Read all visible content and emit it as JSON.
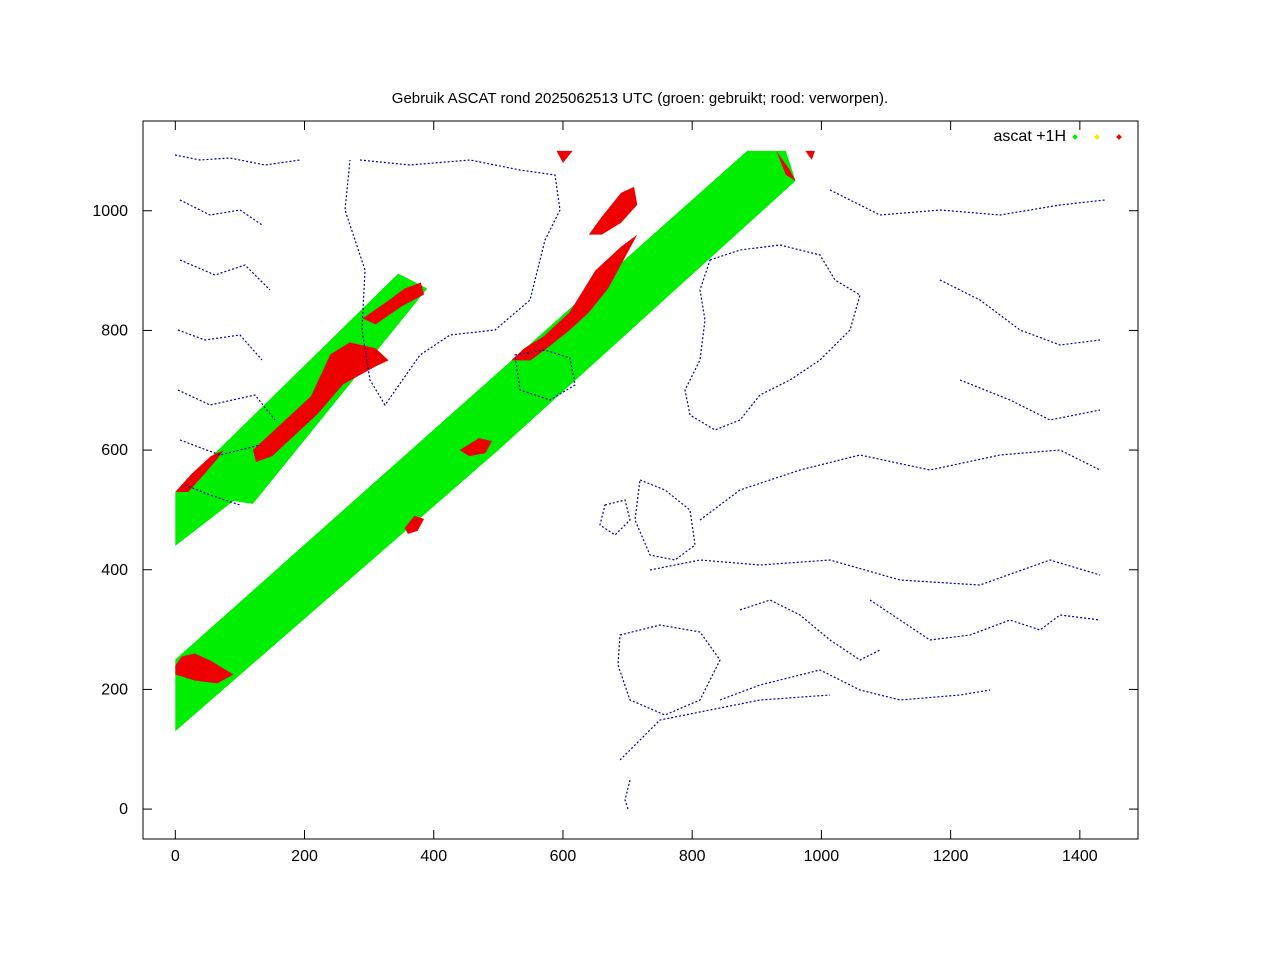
{
  "chart_data": {
    "type": "scatter",
    "title": "Gebruik ASCAT rond 2025062513 UTC (groen: gebruikt; rood: verworpen).",
    "xlabel": "",
    "ylabel": "",
    "xlim": [
      -50,
      1490
    ],
    "ylim": [
      -50,
      1150
    ],
    "xticks": [
      0,
      200,
      400,
      600,
      800,
      1000,
      1200,
      1400
    ],
    "yticks": [
      0,
      200,
      400,
      600,
      800,
      1000
    ],
    "grid": false,
    "legend": {
      "position": "top-right",
      "label": "ascat +1H"
    },
    "series": [
      {
        "name": "ascat +1H",
        "color": "#00ee00",
        "role": "used"
      },
      {
        "color": "#eeee00",
        "role": "other"
      },
      {
        "color": "#ee0000",
        "role": "rejected"
      }
    ],
    "swaths": [
      {
        "polygon": [
          [
            0,
            440
          ],
          [
            0,
            530
          ],
          [
            345,
            895
          ],
          [
            390,
            870
          ],
          [
            120,
            510
          ],
          [
            90,
            515
          ]
        ]
      },
      {
        "polygon": [
          [
            0,
            130
          ],
          [
            0,
            250
          ],
          [
            885,
            1100
          ],
          [
            945,
            1100
          ],
          [
            960,
            1050
          ],
          [
            500,
            600
          ]
        ]
      }
    ],
    "rejected_regions": [
      {
        "polygon": [
          [
            0,
            240
          ],
          [
            10,
            255
          ],
          [
            30,
            260
          ],
          [
            55,
            248
          ],
          [
            90,
            225
          ],
          [
            65,
            210
          ],
          [
            30,
            215
          ],
          [
            0,
            225
          ]
        ]
      },
      {
        "polygon": [
          [
            120,
            600
          ],
          [
            210,
            690
          ],
          [
            240,
            760
          ],
          [
            270,
            780
          ],
          [
            310,
            770
          ],
          [
            330,
            750
          ],
          [
            310,
            740
          ],
          [
            260,
            710
          ],
          [
            220,
            660
          ],
          [
            180,
            620
          ],
          [
            150,
            590
          ],
          [
            125,
            580
          ]
        ]
      },
      {
        "polygon": [
          [
            290,
            820
          ],
          [
            330,
            850
          ],
          [
            355,
            870
          ],
          [
            380,
            880
          ],
          [
            385,
            860
          ],
          [
            350,
            840
          ],
          [
            310,
            810
          ]
        ]
      },
      {
        "polygon": [
          [
            0,
            530
          ],
          [
            25,
            560
          ],
          [
            55,
            590
          ],
          [
            75,
            600
          ],
          [
            65,
            585
          ],
          [
            45,
            560
          ],
          [
            20,
            530
          ]
        ]
      },
      {
        "polygon": [
          [
            520,
            750
          ],
          [
            540,
            770
          ],
          [
            570,
            790
          ],
          [
            610,
            830
          ],
          [
            650,
            900
          ],
          [
            690,
            940
          ],
          [
            715,
            960
          ],
          [
            700,
            930
          ],
          [
            670,
            870
          ],
          [
            640,
            830
          ],
          [
            610,
            800
          ],
          [
            575,
            770
          ],
          [
            550,
            750
          ]
        ]
      },
      {
        "polygon": [
          [
            640,
            960
          ],
          [
            660,
            990
          ],
          [
            690,
            1030
          ],
          [
            710,
            1040
          ],
          [
            715,
            1010
          ],
          [
            690,
            980
          ],
          [
            660,
            960
          ]
        ]
      },
      {
        "polygon": [
          [
            440,
            600
          ],
          [
            470,
            620
          ],
          [
            490,
            615
          ],
          [
            480,
            595
          ],
          [
            455,
            590
          ]
        ]
      },
      {
        "polygon": [
          [
            355,
            470
          ],
          [
            370,
            490
          ],
          [
            385,
            485
          ],
          [
            375,
            465
          ],
          [
            360,
            460
          ]
        ]
      },
      {
        "polygon": [
          [
            590,
            1100
          ],
          [
            615,
            1100
          ],
          [
            600,
            1080
          ]
        ]
      },
      {
        "polygon": [
          [
            930,
            1100
          ],
          [
            950,
            1070
          ],
          [
            960,
            1050
          ],
          [
            945,
            1060
          ]
        ]
      },
      {
        "polygon": [
          [
            975,
            1100
          ],
          [
            990,
            1100
          ],
          [
            985,
            1085
          ]
        ]
      }
    ]
  }
}
